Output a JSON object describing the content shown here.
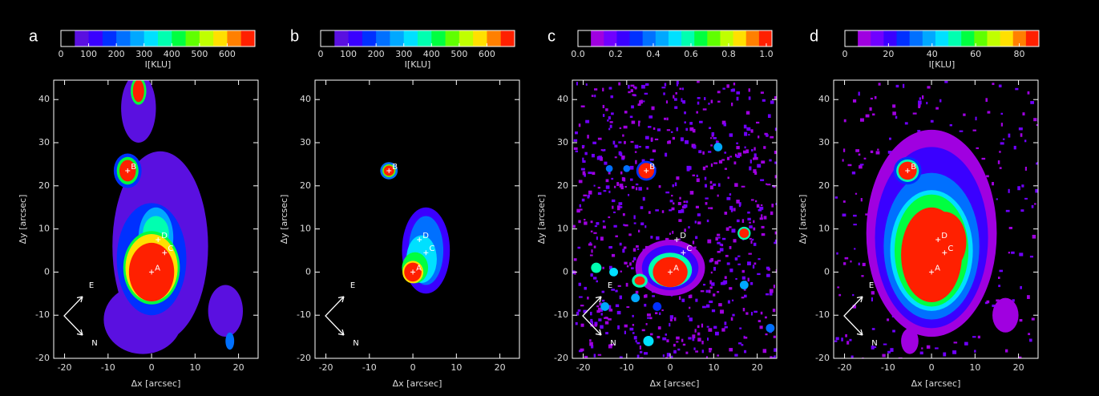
{
  "chart_data": [
    {
      "type": "image",
      "panel": "a",
      "colorbar": {
        "ticks": [
          0,
          100,
          200,
          300,
          400,
          500,
          600
        ],
        "lim": [
          0,
          700
        ],
        "label": "I[KLU]",
        "colors": [
          "#000000",
          "#5a10e0",
          "#3a00ff",
          "#0030ff",
          "#0070ff",
          "#00a8ff",
          "#00e0ff",
          "#00ffb0",
          "#00ff40",
          "#60ff00",
          "#c0ff00",
          "#ffe000",
          "#ff8000",
          "#ff2000"
        ]
      },
      "xlim": [
        -22.5,
        24.5
      ],
      "ylim": [
        -20,
        44.5
      ],
      "xticks": [
        -20,
        -10,
        0,
        10,
        20
      ],
      "yticks": [
        -20,
        -10,
        0,
        10,
        20,
        30,
        40
      ],
      "xlabel": "Δx [arcsec]",
      "ylabel": "Δy [arcsec]",
      "sources": [
        {
          "name": "A",
          "x": 0,
          "y": 0
        },
        {
          "name": "B",
          "x": -5.5,
          "y": 23.5
        },
        {
          "name": "C",
          "x": 3,
          "y": 4.5
        },
        {
          "name": "D",
          "x": 1.5,
          "y": 7.5
        }
      ],
      "compass": [
        "E",
        "N"
      ]
    },
    {
      "type": "image",
      "panel": "b",
      "colorbar": {
        "ticks": [
          0,
          100,
          200,
          300,
          400,
          500,
          600
        ],
        "lim": [
          0,
          700
        ],
        "label": "I[KLU]",
        "colors": [
          "#000000",
          "#5a10e0",
          "#3a00ff",
          "#0030ff",
          "#0070ff",
          "#00a8ff",
          "#00e0ff",
          "#00ffb0",
          "#00ff40",
          "#60ff00",
          "#c0ff00",
          "#ffe000",
          "#ff8000",
          "#ff2000"
        ]
      },
      "xlim": [
        -22.5,
        24.5
      ],
      "ylim": [
        -20,
        44.5
      ],
      "xticks": [
        -20,
        -10,
        0,
        10,
        20
      ],
      "yticks": [
        -20,
        -10,
        0,
        10,
        20,
        30,
        40
      ],
      "xlabel": "Δx [arcsec]",
      "ylabel": "Δy [arcsec]",
      "sources": [
        {
          "name": "A",
          "x": 0,
          "y": 0
        },
        {
          "name": "B",
          "x": -5.5,
          "y": 23.5
        },
        {
          "name": "C",
          "x": 3,
          "y": 4.5
        },
        {
          "name": "D",
          "x": 1.5,
          "y": 7.5
        }
      ],
      "compass": [
        "E",
        "N"
      ]
    },
    {
      "type": "image",
      "panel": "c",
      "colorbar": {
        "ticks": [
          {
            "value": 0,
            "label": "0.0"
          },
          0.2,
          0.4,
          0.6,
          0.8,
          {
            "value": 1,
            "label": "1.0"
          }
        ],
        "lim": [
          0,
          1.03
        ],
        "colors": [
          "#000000",
          "#a000e0",
          "#7000ff",
          "#3a00ff",
          "#0030ff",
          "#0070ff",
          "#00a8ff",
          "#00e0ff",
          "#00ffb0",
          "#00ff40",
          "#60ff00",
          "#c0ff00",
          "#ffe000",
          "#ff8000",
          "#ff2000"
        ]
      },
      "xlim": [
        -22.5,
        24.5
      ],
      "ylim": [
        -20,
        44.5
      ],
      "xticks": [
        -20,
        -10,
        0,
        10,
        20
      ],
      "yticks": [
        -20,
        -10,
        0,
        10,
        20,
        30,
        40
      ],
      "xlabel": "Δx [arcsec]",
      "ylabel": "Δy [arcsec]",
      "sources": [
        {
          "name": "A",
          "x": 0,
          "y": 0
        },
        {
          "name": "B",
          "x": -5.5,
          "y": 23.5
        },
        {
          "name": "C",
          "x": 3,
          "y": 4.5
        },
        {
          "name": "D",
          "x": 1.5,
          "y": 7.5
        }
      ],
      "compass": [
        "E",
        "N"
      ]
    },
    {
      "type": "image",
      "panel": "d",
      "colorbar": {
        "ticks": [
          0,
          20,
          40,
          60,
          80
        ],
        "lim": [
          0,
          89
        ],
        "label": "I[KLU]",
        "colors": [
          "#000000",
          "#a000e0",
          "#7000ff",
          "#3a00ff",
          "#0030ff",
          "#0070ff",
          "#00a8ff",
          "#00e0ff",
          "#00ffb0",
          "#00ff40",
          "#60ff00",
          "#c0ff00",
          "#ffe000",
          "#ff8000",
          "#ff2000"
        ]
      },
      "xlim": [
        -22.5,
        24.5
      ],
      "ylim": [
        -20,
        44.5
      ],
      "xticks": [
        -20,
        -10,
        0,
        10,
        20
      ],
      "yticks": [
        -20,
        -10,
        0,
        10,
        20,
        30,
        40
      ],
      "xlabel": "Δx [arcsec]",
      "ylabel": "Δy [arcsec]",
      "sources": [
        {
          "name": "A",
          "x": 0,
          "y": 0
        },
        {
          "name": "B",
          "x": -5.5,
          "y": 23.5
        },
        {
          "name": "C",
          "x": 3,
          "y": 4.5
        },
        {
          "name": "D",
          "x": 1.5,
          "y": 7.5
        }
      ],
      "compass": [
        "E",
        "N"
      ]
    }
  ]
}
